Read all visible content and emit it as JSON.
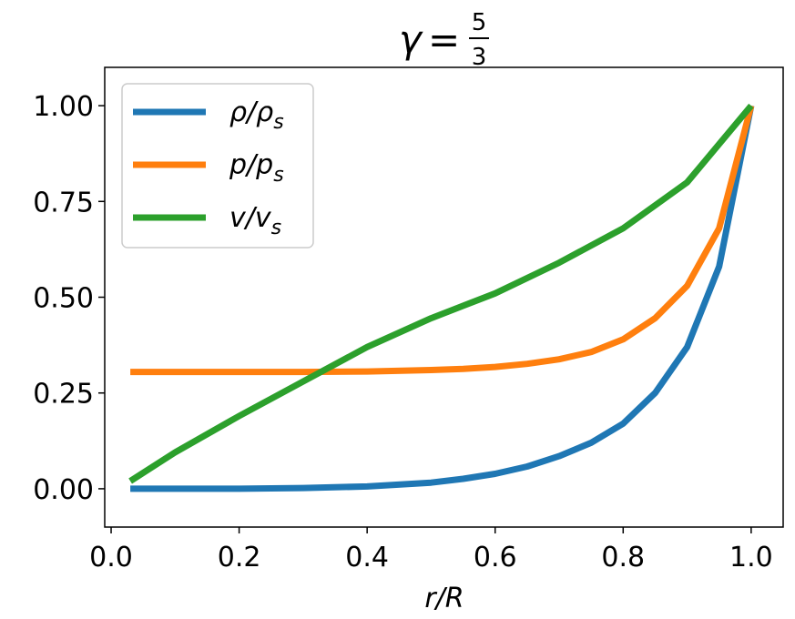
{
  "chart_data": {
    "type": "line",
    "title": {
      "symbol": "γ",
      "equals": "=",
      "fraction_numerator": "5",
      "fraction_denominator": "3"
    },
    "xlabel": "r/R",
    "ylabel": "",
    "xlim": [
      -0.01,
      1.05
    ],
    "ylim": [
      -0.1,
      1.1
    ],
    "x_ticks": [
      0.0,
      0.2,
      0.4,
      0.6,
      0.8,
      1.0
    ],
    "x_tick_labels": [
      "0.0",
      "0.2",
      "0.4",
      "0.6",
      "0.8",
      "1.0"
    ],
    "y_ticks": [
      0.0,
      0.25,
      0.5,
      0.75,
      1.0
    ],
    "y_tick_labels": [
      "0.00",
      "0.25",
      "0.50",
      "0.75",
      "1.00"
    ],
    "grid": false,
    "legend_position": "top-left",
    "series": [
      {
        "name": "ρ/ρs",
        "legend_main": "ρ/ρ",
        "legend_sub": "s",
        "color": "#1f77b4",
        "x": [
          0.03,
          0.1,
          0.2,
          0.3,
          0.4,
          0.5,
          0.55,
          0.6,
          0.65,
          0.7,
          0.75,
          0.8,
          0.85,
          0.9,
          0.95,
          1.0
        ],
        "y": [
          0.0,
          0.0,
          0.0,
          0.002,
          0.006,
          0.016,
          0.026,
          0.039,
          0.058,
          0.085,
          0.12,
          0.17,
          0.25,
          0.37,
          0.58,
          1.0
        ]
      },
      {
        "name": "p/ps",
        "legend_main": "p/p",
        "legend_sub": "s",
        "color": "#ff7f0e",
        "x": [
          0.03,
          0.1,
          0.2,
          0.3,
          0.4,
          0.5,
          0.55,
          0.6,
          0.65,
          0.7,
          0.75,
          0.8,
          0.85,
          0.9,
          0.95,
          1.0
        ],
        "y": [
          0.305,
          0.305,
          0.305,
          0.305,
          0.306,
          0.31,
          0.313,
          0.318,
          0.326,
          0.338,
          0.357,
          0.39,
          0.445,
          0.53,
          0.68,
          1.0
        ]
      },
      {
        "name": "v/vs",
        "legend_main": "v/v",
        "legend_sub": "s",
        "color": "#2ca02c",
        "x": [
          0.03,
          0.1,
          0.2,
          0.3,
          0.4,
          0.5,
          0.6,
          0.7,
          0.8,
          0.9,
          1.0
        ],
        "y": [
          0.02,
          0.095,
          0.19,
          0.28,
          0.37,
          0.445,
          0.51,
          0.59,
          0.68,
          0.8,
          1.0
        ]
      }
    ]
  }
}
